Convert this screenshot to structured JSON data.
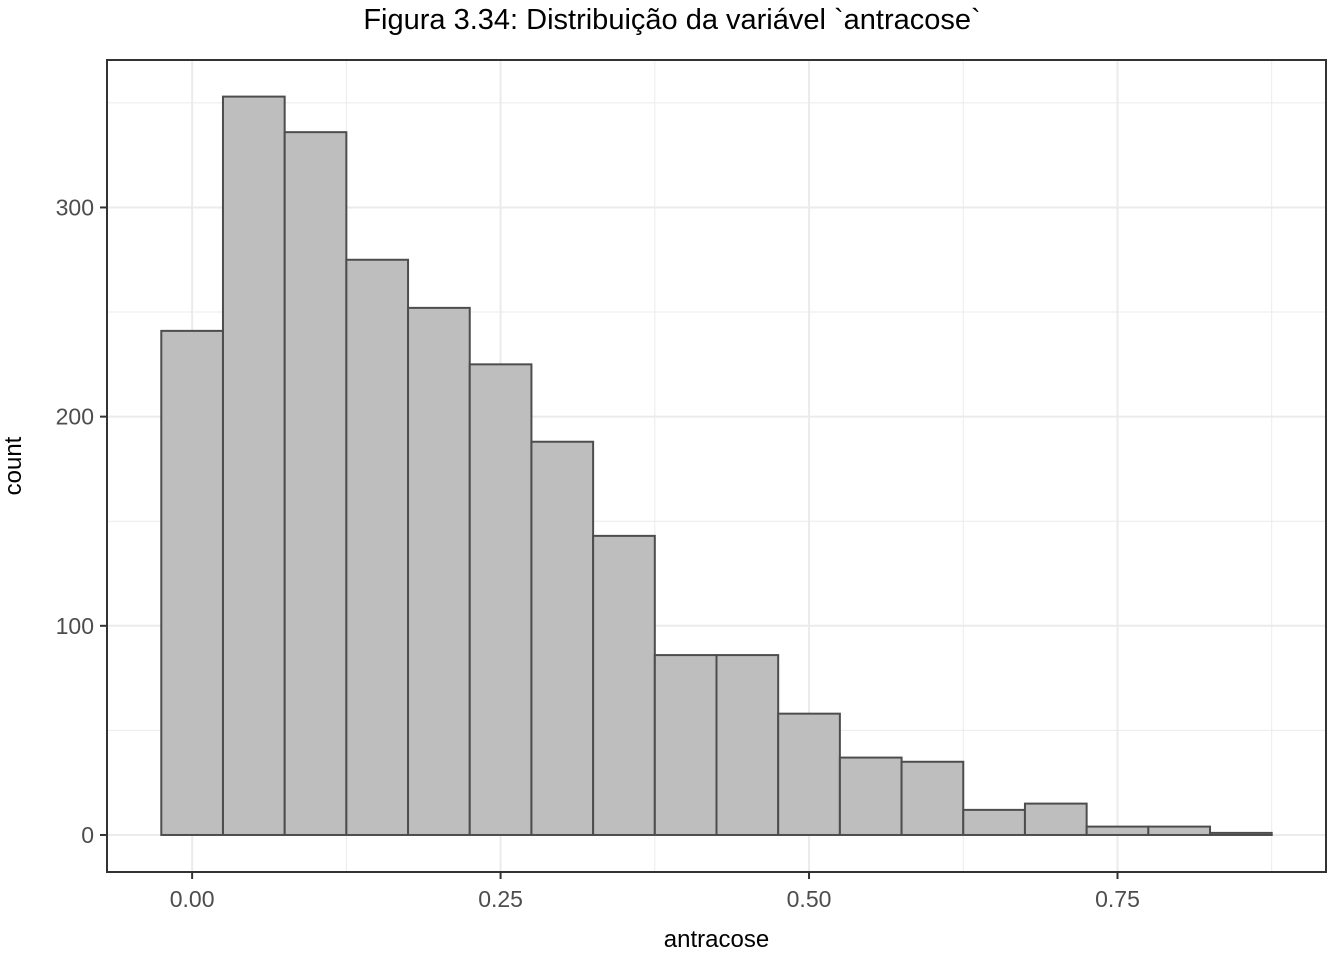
{
  "chart_data": {
    "type": "bar",
    "title": "Figura 3.34: Distribuição da variável `antracose`",
    "xlabel": "antracose",
    "ylabel": "count",
    "bin_width": 0.05,
    "bins": [
      {
        "x0": -0.025,
        "x1": 0.025,
        "count": 241
      },
      {
        "x0": 0.025,
        "x1": 0.075,
        "count": 353
      },
      {
        "x0": 0.075,
        "x1": 0.125,
        "count": 336
      },
      {
        "x0": 0.125,
        "x1": 0.175,
        "count": 275
      },
      {
        "x0": 0.175,
        "x1": 0.225,
        "count": 252
      },
      {
        "x0": 0.225,
        "x1": 0.275,
        "count": 225
      },
      {
        "x0": 0.275,
        "x1": 0.325,
        "count": 188
      },
      {
        "x0": 0.325,
        "x1": 0.375,
        "count": 143
      },
      {
        "x0": 0.375,
        "x1": 0.425,
        "count": 86
      },
      {
        "x0": 0.425,
        "x1": 0.475,
        "count": 86
      },
      {
        "x0": 0.475,
        "x1": 0.525,
        "count": 58
      },
      {
        "x0": 0.525,
        "x1": 0.575,
        "count": 37
      },
      {
        "x0": 0.575,
        "x1": 0.625,
        "count": 35
      },
      {
        "x0": 0.625,
        "x1": 0.675,
        "count": 12
      },
      {
        "x0": 0.675,
        "x1": 0.725,
        "count": 15
      },
      {
        "x0": 0.725,
        "x1": 0.775,
        "count": 4
      },
      {
        "x0": 0.775,
        "x1": 0.825,
        "count": 4
      },
      {
        "x0": 0.825,
        "x1": 0.875,
        "count": 1
      }
    ],
    "xlim": [
      -0.069,
      0.919
    ],
    "ylim": [
      -17.7,
      370.5
    ],
    "x_ticks": [
      0,
      0.25,
      0.5,
      0.75
    ],
    "x_tick_labels": [
      "0.00",
      "0.25",
      "0.50",
      "0.75"
    ],
    "y_ticks": [
      0,
      100,
      200,
      300
    ],
    "y_tick_labels": [
      "0",
      "100",
      "200",
      "300"
    ],
    "grid": true,
    "bar_fill": "#bebebe",
    "bar_stroke": "#4d4d4d",
    "grid_color": "#ebebeb",
    "panel_border": "#333333"
  }
}
